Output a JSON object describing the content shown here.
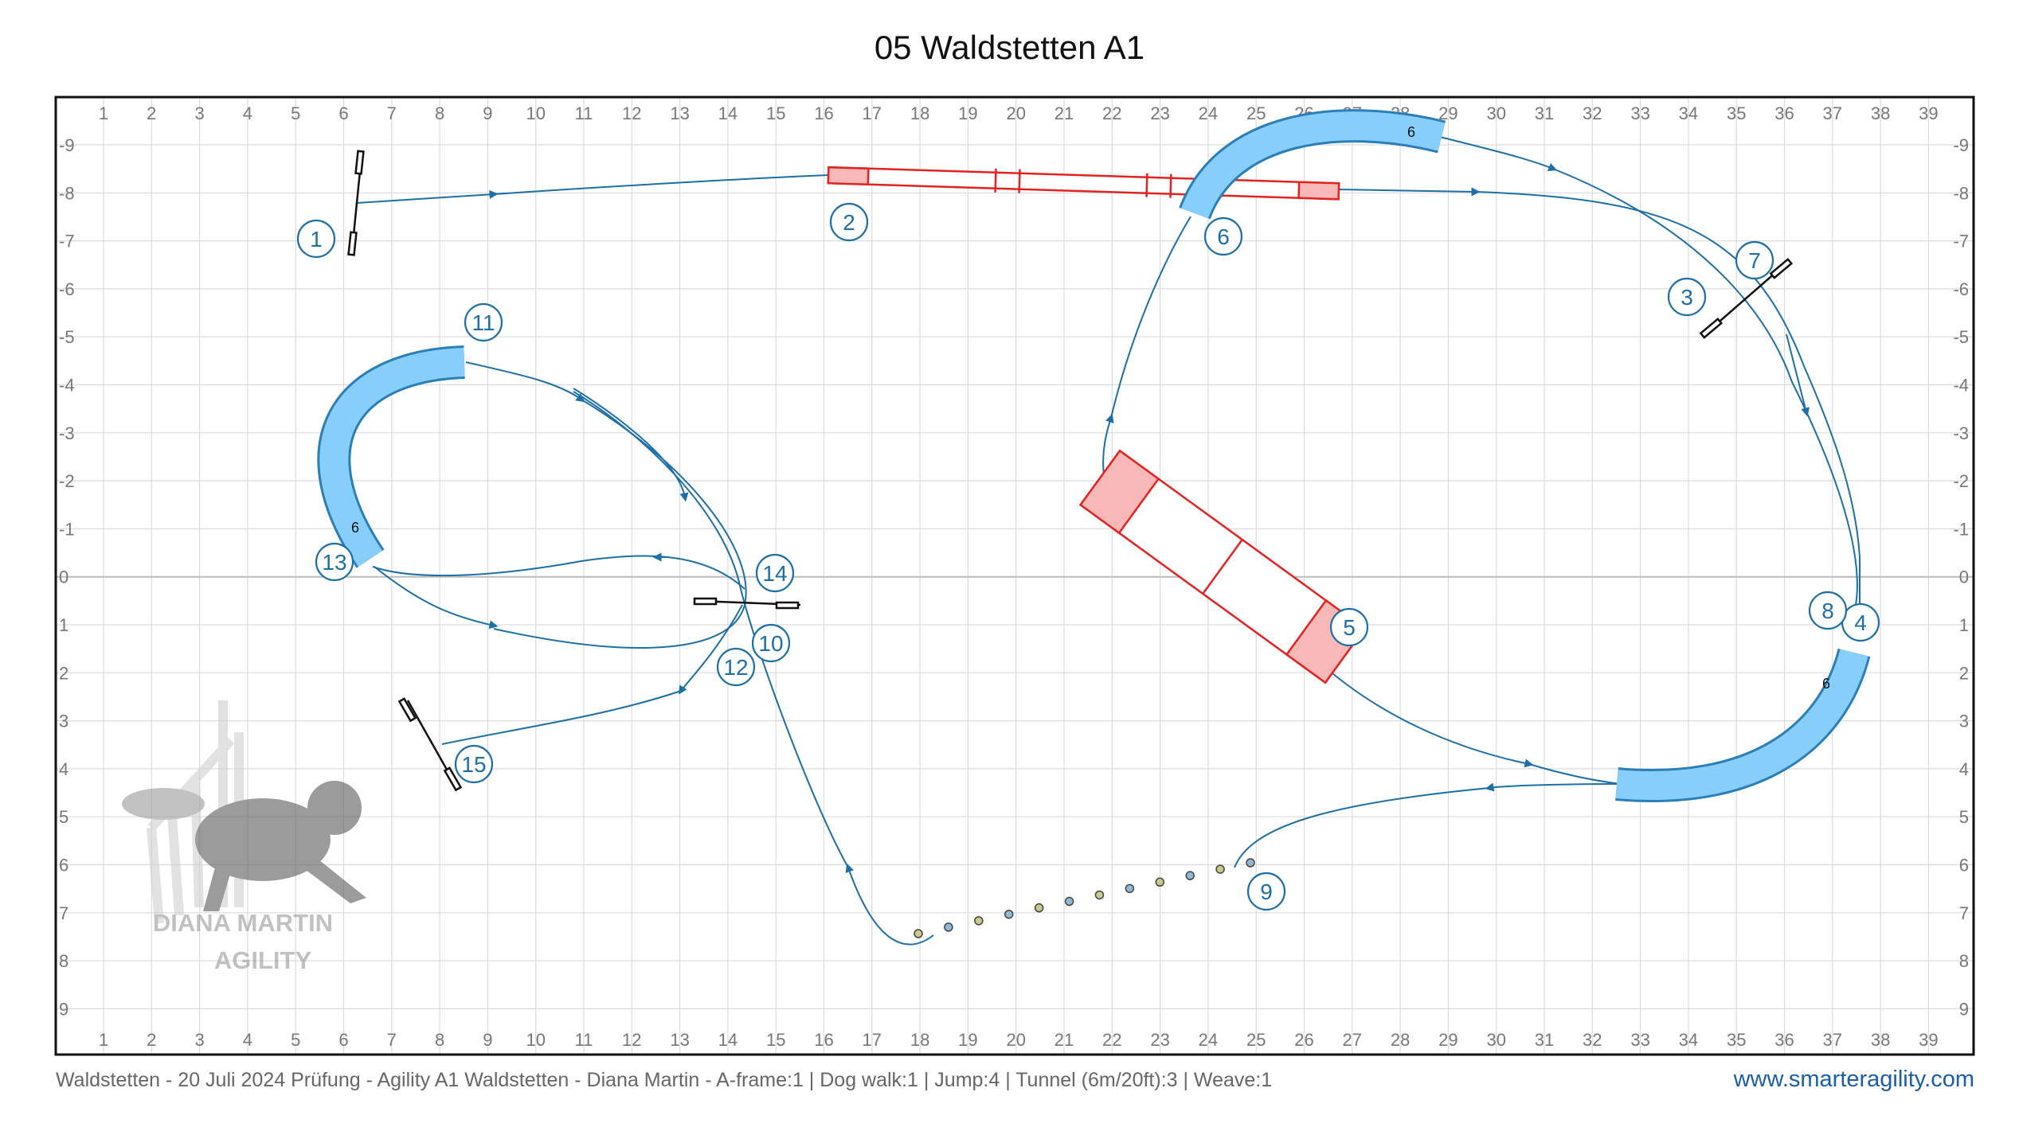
{
  "title": "05 Waldstetten A1",
  "axis": {
    "top_labels": [
      "1",
      "2",
      "3",
      "4",
      "5",
      "6",
      "7",
      "8",
      "9",
      "10",
      "11",
      "12",
      "13",
      "14",
      "15",
      "16",
      "17",
      "18",
      "19",
      "20",
      "21",
      "22",
      "23",
      "24",
      "25",
      "26",
      "27",
      "28",
      "29",
      "30",
      "31",
      "32",
      "33",
      "34",
      "35",
      "36",
      "37",
      "38",
      "39"
    ],
    "side_labels": [
      "-9",
      "-8",
      "-7",
      "-6",
      "-5",
      "-4",
      "-3",
      "-2",
      "-1",
      "0",
      "1",
      "2",
      "3",
      "4",
      "5",
      "6",
      "7",
      "8",
      "9"
    ]
  },
  "obstacle_numbers": [
    "1",
    "2",
    "3",
    "4",
    "5",
    "6",
    "7",
    "8",
    "9",
    "10",
    "11",
    "12",
    "13",
    "14",
    "15"
  ],
  "tunnel_length_labels": [
    "6",
    "6",
    "6"
  ],
  "watermark": {
    "line1": "DIANA MARTIN",
    "line2": "AGILITY"
  },
  "footer": {
    "info": "Waldstetten - 20 Juli 2024 Prüfung - Agility A1 Waldstetten - Diana Martin - A-frame:1 | Dog walk:1 | Jump:4 | Tunnel (6m/20ft):3 | Weave:1",
    "link": "www.smarteragility.com"
  },
  "colors": {
    "path": "#1d6fa5",
    "number": "#1d6fa5",
    "tunnel_fill": "#87cefa",
    "tunnel_stroke": "#2a7fb8",
    "contact_stroke": "#e32222",
    "contact_zone": "#f9b8b8",
    "grid": "#d9d9d9",
    "weave_pole": "#b8c9a8"
  }
}
